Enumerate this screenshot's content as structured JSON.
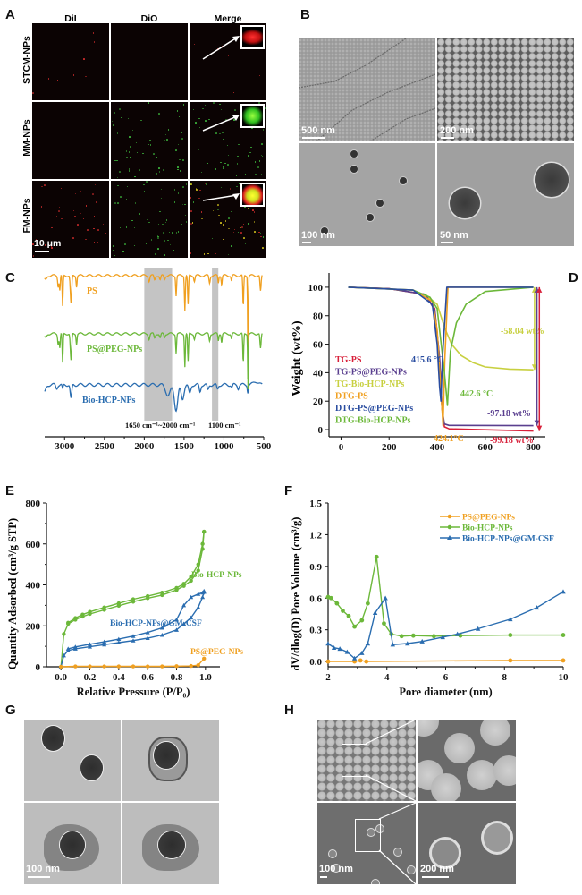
{
  "figure": {
    "panels": {
      "A": {
        "label": "A",
        "columns": [
          "DiI",
          "DiO",
          "Merge"
        ],
        "rows": [
          "STCM-NPs",
          "MM-NPs",
          "FM-NPs"
        ],
        "scale_bar": "10 μm",
        "colors": {
          "dil": "#e03030",
          "dio": "#40c040",
          "merge": "#e0d020"
        }
      },
      "B": {
        "label": "B",
        "scale_bars": [
          "500 nm",
          "200 nm",
          "100 nm",
          "50 nm"
        ]
      },
      "C": {
        "label": "C"
      },
      "D": {
        "label": "D"
      },
      "E": {
        "label": "E"
      },
      "F": {
        "label": "F"
      },
      "G": {
        "label": "G",
        "scale_bar": "100 nm"
      },
      "H": {
        "label": "H",
        "scale_bars": [
          "100 nm",
          "200 nm"
        ]
      }
    }
  },
  "chart_data": [
    {
      "panel": "C",
      "type": "line",
      "title": "",
      "xlabel": "Wavenumber (cm⁻¹)",
      "ylabel": "",
      "xlim": [
        3250,
        500
      ],
      "x_reversed": true,
      "xticks": [
        "3000",
        "2500",
        "2000",
        "1500",
        "1000",
        "500"
      ],
      "shaded_regions": [
        {
          "from": 2000,
          "to": 1650,
          "label": "1650 cm⁻¹~2000 cm⁻¹"
        },
        {
          "from": 1150,
          "to": 1070,
          "label": "1100 cm⁻¹"
        }
      ],
      "series": [
        {
          "name": "PS",
          "color": "#f0a020"
        },
        {
          "name": "PS@PEG-NPs",
          "color": "#6cb83a"
        },
        {
          "name": "Bio-HCP-NPs",
          "color": "#2a6db0"
        }
      ]
    },
    {
      "panel": "D",
      "type": "line",
      "xlabel": "",
      "ylabel": "Weight (wt%)",
      "xlim": [
        -50,
        850
      ],
      "ylim": [
        -5,
        110
      ],
      "xticks": [
        "0",
        "200",
        "400",
        "600",
        "800"
      ],
      "yticks": [
        "0",
        "20",
        "40",
        "60",
        "80",
        "100"
      ],
      "legend": [
        "TG-PS",
        "TG-PS@PEG-NPs",
        "TG-Bio-HCP-NPs",
        "DTG-PS",
        "DTG-PS@PEG-NPs",
        "DTG-Bio-HCP-NPs"
      ],
      "legend_colors": [
        "#d8203a",
        "#5a3f8f",
        "#c8d040",
        "#f0a020",
        "#2a4da0",
        "#6cb83a"
      ],
      "legend_position": "bottom-left",
      "annotations": [
        {
          "text": "415.6 °C",
          "color": "#2a4da0"
        },
        {
          "text": "442.6 °C",
          "color": "#6cb83a"
        },
        {
          "text": "424.1°C",
          "color": "#f0a020"
        },
        {
          "text": "-58.04 wt%",
          "color": "#c8d040"
        },
        {
          "text": "-97.18 wt%",
          "color": "#5a3f8f"
        },
        {
          "text": "-99.18 wt%",
          "color": "#d8203a"
        }
      ],
      "series": [
        {
          "name": "TG-PS",
          "x": [
            30,
            200,
            350,
            390,
            410,
            420,
            430,
            450,
            800
          ],
          "y": [
            100,
            99,
            95,
            85,
            50,
            15,
            2,
            0.5,
            -1
          ]
        },
        {
          "name": "TG-PS@PEG-NPs",
          "x": [
            30,
            200,
            350,
            390,
            410,
            420,
            430,
            450,
            800
          ],
          "y": [
            100,
            99,
            95,
            84,
            50,
            15,
            4,
            3,
            2.8
          ]
        },
        {
          "name": "TG-Bio-HCP-NPs",
          "x": [
            30,
            200,
            350,
            400,
            430,
            460,
            500,
            550,
            600,
            700,
            800
          ],
          "y": [
            100,
            99,
            95,
            88,
            72,
            60,
            52,
            47,
            44,
            42.5,
            42
          ]
        },
        {
          "name": "DTG-PS",
          "x": [
            30,
            300,
            380,
            400,
            415,
            424,
            432,
            445,
            800
          ],
          "y": [
            100,
            98,
            90,
            70,
            30,
            3,
            50,
            100,
            100
          ]
        },
        {
          "name": "DTG-PS@PEG-NPs",
          "x": [
            30,
            300,
            380,
            400,
            410,
            415.6,
            422,
            440,
            800
          ],
          "y": [
            100,
            98,
            88,
            60,
            30,
            20,
            50,
            100,
            100
          ]
        },
        {
          "name": "DTG-Bio-HCP-NPs",
          "x": [
            30,
            300,
            370,
            400,
            430,
            442.6,
            455,
            480,
            520,
            600,
            800
          ],
          "y": [
            100,
            98,
            93,
            85,
            40,
            17,
            55,
            75,
            88,
            97,
            100
          ]
        }
      ]
    },
    {
      "panel": "E",
      "type": "line",
      "xlabel": "Relative Pressure (P/P₀)",
      "ylabel": "Quantity Adsorbed (cm³/g STP)",
      "xlim": [
        -0.1,
        1.1
      ],
      "ylim": [
        0,
        800
      ],
      "xticks": [
        "0.0",
        "0.2",
        "0.4",
        "0.6",
        "0.8",
        "1.0"
      ],
      "yticks": [
        "0",
        "200",
        "400",
        "600",
        "800"
      ],
      "series": [
        {
          "name": "Bio-HCP-NPs",
          "color": "#6cb83a",
          "x": [
            0.0,
            0.02,
            0.05,
            0.1,
            0.15,
            0.2,
            0.3,
            0.4,
            0.5,
            0.6,
            0.7,
            0.8,
            0.85,
            0.9,
            0.95,
            0.98,
            0.99
          ],
          "adsorption": [
            0,
            160,
            210,
            230,
            245,
            258,
            278,
            298,
            318,
            335,
            350,
            375,
            395,
            420,
            470,
            575,
            660
          ],
          "desorption": [
            null,
            null,
            215,
            238,
            255,
            268,
            290,
            310,
            330,
            345,
            362,
            385,
            405,
            440,
            500,
            600,
            660
          ]
        },
        {
          "name": "Bio-HCP-NPs@GM-CSF",
          "color": "#2a6db0",
          "x": [
            0.0,
            0.02,
            0.05,
            0.1,
            0.2,
            0.3,
            0.4,
            0.5,
            0.6,
            0.7,
            0.8,
            0.85,
            0.9,
            0.95,
            0.98,
            0.99
          ],
          "adsorption": [
            0,
            55,
            80,
            88,
            98,
            108,
            118,
            128,
            140,
            155,
            180,
            210,
            240,
            290,
            340,
            365
          ],
          "desorption": [
            null,
            null,
            88,
            97,
            110,
            122,
            135,
            150,
            168,
            190,
            230,
            300,
            340,
            355,
            362,
            370
          ]
        },
        {
          "name": "PS@PEG-NPs",
          "color": "#f0a020",
          "x": [
            0.0,
            0.1,
            0.2,
            0.3,
            0.4,
            0.5,
            0.6,
            0.7,
            0.8,
            0.9,
            0.95,
            0.99
          ],
          "adsorption": [
            0,
            2,
            2,
            2,
            2,
            2,
            2,
            2,
            3,
            4,
            8,
            40
          ]
        }
      ]
    },
    {
      "panel": "F",
      "type": "line",
      "xlabel": "Pore diameter (nm)",
      "ylabel": "dV/dlog(D) Pore Volume (cm³/g)",
      "xlim": [
        2,
        10
      ],
      "ylim": [
        -0.05,
        1.5
      ],
      "xticks": [
        "2",
        "4",
        "6",
        "8",
        "10"
      ],
      "yticks": [
        "0.0",
        "0.3",
        "0.6",
        "0.9",
        "1.2",
        "1.5"
      ],
      "legend_position": "top-right",
      "series": [
        {
          "name": "PS@PEG-NPs",
          "color": "#f0a020",
          "marker": "circle",
          "x": [
            2.0,
            2.9,
            3.1,
            3.3,
            8.2,
            10.0
          ],
          "y": [
            0.0,
            0.0,
            0.01,
            0.0,
            0.01,
            0.01
          ]
        },
        {
          "name": "Bio-HCP-NPs",
          "color": "#6cb83a",
          "marker": "circle",
          "x": [
            2.0,
            2.1,
            2.3,
            2.5,
            2.7,
            2.9,
            3.15,
            3.35,
            3.65,
            3.9,
            4.15,
            4.5,
            4.9,
            5.6,
            6.5,
            8.2,
            10.0
          ],
          "y": [
            0.61,
            0.6,
            0.55,
            0.48,
            0.43,
            0.33,
            0.39,
            0.55,
            0.99,
            0.36,
            0.26,
            0.24,
            0.245,
            0.24,
            0.245,
            0.25,
            0.25
          ]
        },
        {
          "name": "Bio-HCP-NPs@GM-CSF",
          "color": "#2a6db0",
          "marker": "triangle",
          "x": [
            2.0,
            2.2,
            2.4,
            2.65,
            2.9,
            3.15,
            3.35,
            3.6,
            3.95,
            4.2,
            4.7,
            5.2,
            5.9,
            6.4,
            7.1,
            8.2,
            9.1,
            10.0
          ],
          "y": [
            0.17,
            0.13,
            0.12,
            0.09,
            0.03,
            0.08,
            0.17,
            0.46,
            0.6,
            0.16,
            0.17,
            0.19,
            0.23,
            0.26,
            0.31,
            0.4,
            0.51,
            0.66
          ]
        }
      ]
    }
  ]
}
